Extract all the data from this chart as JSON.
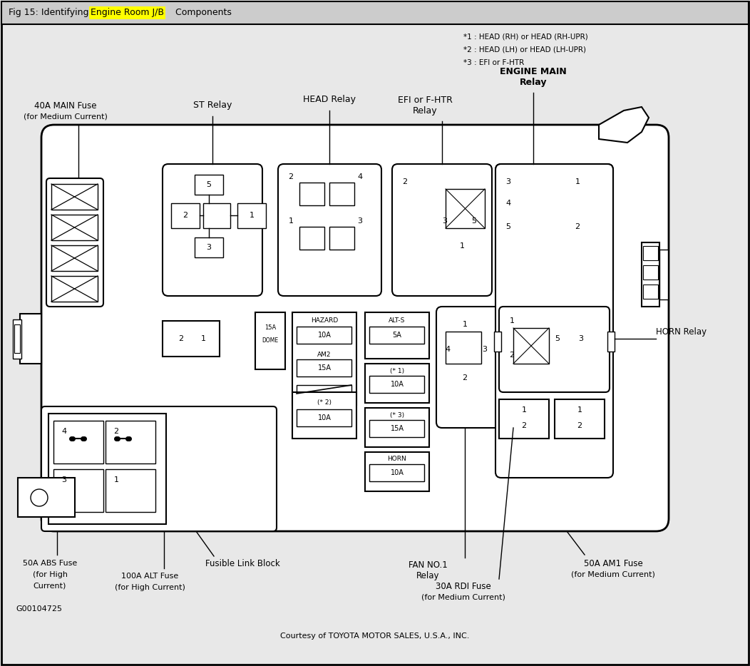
{
  "bg_color": "#e8e8e8",
  "white": "#ffffff",
  "black": "#000000",
  "title_text1": "Fig 15: Identifying ",
  "title_highlight": "Engine Room J/B",
  "title_text2": " Components",
  "notes": [
    "*1 : HEAD (RH) or HEAD (RH-UPR)",
    "*2 : HEAD (LH) or HEAD (LH-UPR)",
    "*3 : EFI or F-HTR"
  ],
  "footnote": "Courtesy of TOYOTA MOTOR SALES, U.S.A., INC.",
  "code": "G00104725"
}
